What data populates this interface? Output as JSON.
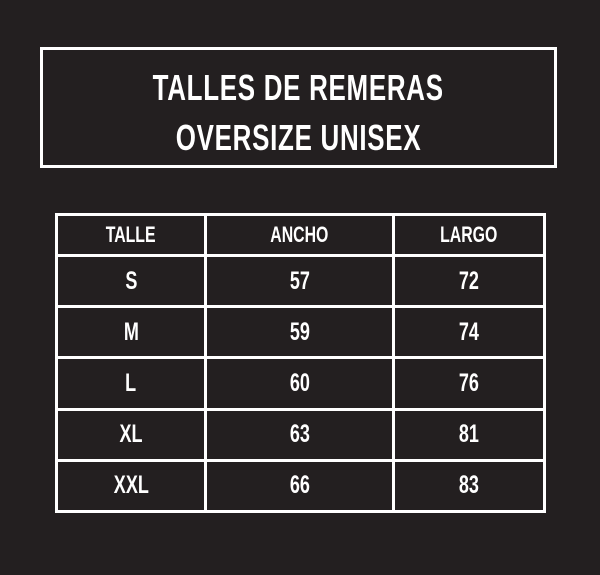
{
  "title": {
    "line1": "TALLES DE REMERAS",
    "line2": "OVERSIZE UNISEX"
  },
  "table": {
    "headers": [
      "TALLE",
      "ANCHO",
      "LARGO"
    ],
    "rows": [
      [
        "S",
        "57",
        "72"
      ],
      [
        "M",
        "59",
        "74"
      ],
      [
        "L",
        "60",
        "76"
      ],
      [
        "XL",
        "63",
        "81"
      ],
      [
        "XXL",
        "66",
        "83"
      ]
    ]
  },
  "colors": {
    "background": "#231f20",
    "foreground": "#ffffff"
  }
}
